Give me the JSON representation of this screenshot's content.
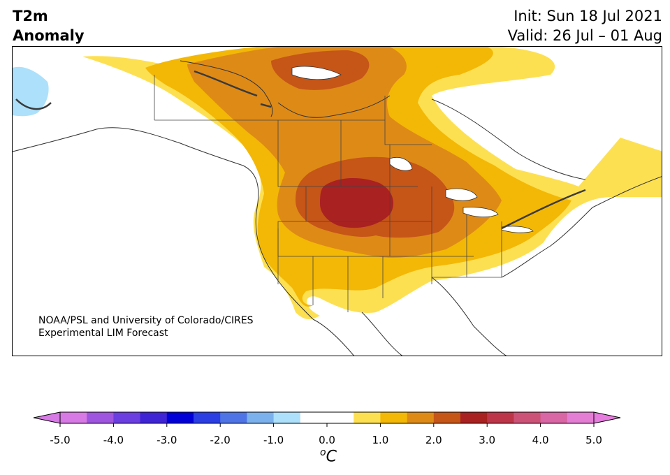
{
  "header": {
    "variable_line1": "T2m",
    "variable_line2": "Anomaly",
    "init_text": "Init: Sun 18 Jul 2021",
    "valid_text": "Valid: 26 Jul – 01 Aug"
  },
  "credit": {
    "line1": "NOAA/PSL and University of Colorado/CIRES",
    "line2": "Experimental LIM Forecast"
  },
  "colorbar": {
    "unit_sup": "o",
    "unit": "C",
    "tick_labels": [
      "-5.0",
      "-4.0",
      "-3.0",
      "-2.0",
      "-1.0",
      "0.0",
      "1.0",
      "2.0",
      "3.0",
      "4.0",
      "5.0"
    ],
    "min": -5.0,
    "max": 5.0,
    "step": 0.5,
    "colors": [
      "#d77ae5",
      "#9f55e0",
      "#6a3ee0",
      "#3f24d6",
      "#0000d7",
      "#2a3ee3",
      "#4e74e6",
      "#7bb1ec",
      "#ade0fa",
      "#ffffff",
      "#ffffff",
      "#fde052",
      "#f3b805",
      "#de8a17",
      "#c65518",
      "#a92120",
      "#bd3548",
      "#cd5278",
      "#d966a5",
      "#e47ed5"
    ],
    "under_color": "#d77ae5",
    "over_color": "#e67cdd"
  },
  "map": {
    "region": "North America",
    "shading_colors": {
      "anomaly_0_5_to_1": "#fde052",
      "anomaly_1_to_1_5": "#f3b805",
      "anomaly_1_5_to_2": "#de8a17",
      "anomaly_2_to_2_5": "#c65518",
      "anomaly_2_5_to_3": "#a92120",
      "anomaly_neg_0_5_to_1": "#ade0fa"
    }
  }
}
